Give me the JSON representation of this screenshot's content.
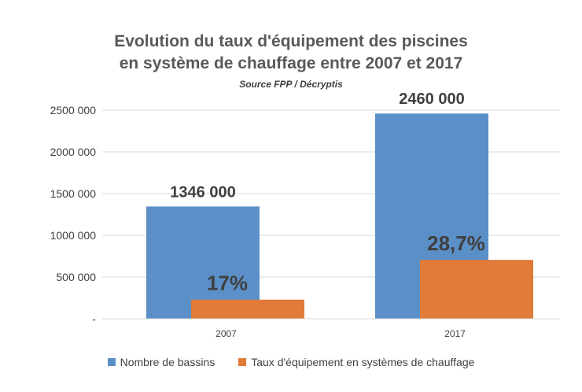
{
  "chart_data": {
    "type": "bar",
    "title_line1": "Evolution du taux d'équipement des piscines",
    "title_line2": "en système de chauffage entre 2007 et 2017",
    "subtitle": "Source FPP / Décryptis",
    "categories": [
      "2007",
      "2017"
    ],
    "ylim": [
      0,
      2500000
    ],
    "yticks": [
      {
        "value": 0,
        "label": "-"
      },
      {
        "value": 500000,
        "label": "500 000"
      },
      {
        "value": 1000000,
        "label": "1000 000"
      },
      {
        "value": 1500000,
        "label": "1500 000"
      },
      {
        "value": 2000000,
        "label": "2000 000"
      },
      {
        "value": 2500000,
        "label": "2500 000"
      }
    ],
    "series": [
      {
        "name": "Nombre de bassins",
        "color": "#5B8FC7",
        "values": [
          1346000,
          2460000
        ],
        "labels": [
          "1346 000",
          "2460 000"
        ]
      },
      {
        "name": "Taux d'équipement en systèmes de chauffage",
        "color": "#E07B39",
        "values": [
          228820,
          706020
        ],
        "labels": [
          "17%",
          "28,7%"
        ]
      }
    ],
    "gridlines": true,
    "legend_position": "bottom"
  }
}
